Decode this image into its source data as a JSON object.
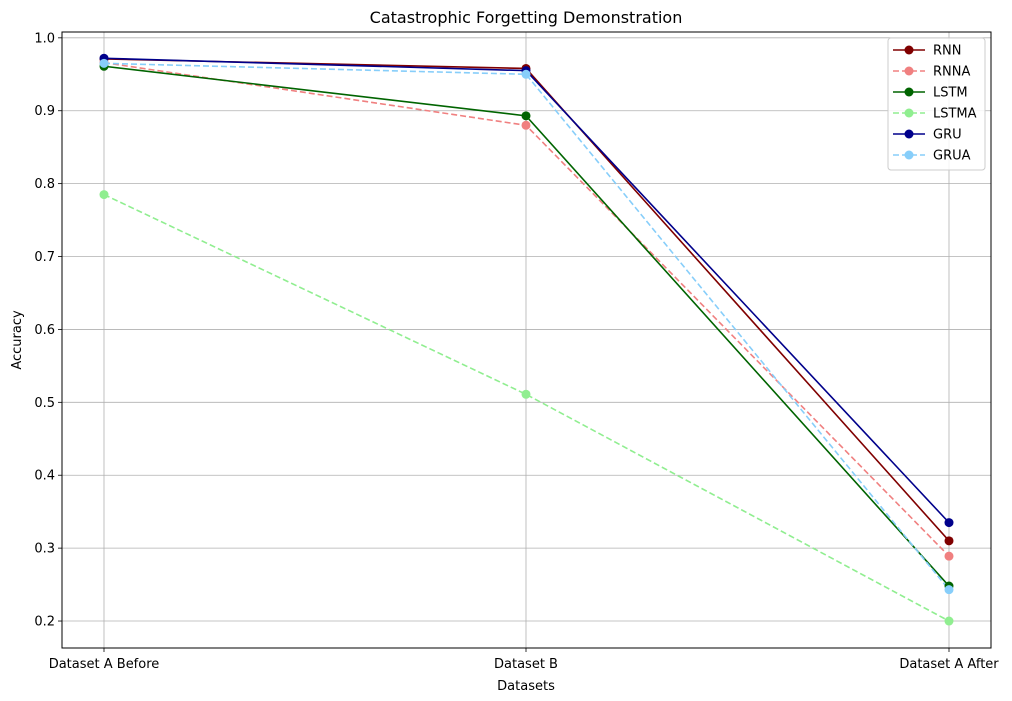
{
  "chart_data": {
    "type": "line",
    "title": "Catastrophic Forgetting Demonstration",
    "xlabel": "Datasets",
    "ylabel": "Accuracy",
    "categories": [
      "Dataset A Before",
      "Dataset B",
      "Dataset A After"
    ],
    "ylim": [
      0.163,
      1.008
    ],
    "yticks": [
      "0.2",
      "0.3",
      "0.4",
      "0.5",
      "0.6",
      "0.7",
      "0.8",
      "0.9",
      "1.0"
    ],
    "grid": true,
    "legend_position": "top-right",
    "series": [
      {
        "name": "RNN",
        "values": [
          0.971,
          0.958,
          0.31
        ],
        "color": "#800000",
        "dashed": false
      },
      {
        "name": "RNNA",
        "values": [
          0.966,
          0.88,
          0.289
        ],
        "color": "#f08080",
        "dashed": true
      },
      {
        "name": "LSTM",
        "values": [
          0.961,
          0.893,
          0.248
        ],
        "color": "#006400",
        "dashed": false
      },
      {
        "name": "LSTMA",
        "values": [
          0.785,
          0.511,
          0.2
        ],
        "color": "#90ee90",
        "dashed": true
      },
      {
        "name": "GRU",
        "values": [
          0.972,
          0.955,
          0.335
        ],
        "color": "#00008b",
        "dashed": false
      },
      {
        "name": "GRUA",
        "values": [
          0.965,
          0.95,
          0.243
        ],
        "color": "#87cefa",
        "dashed": true
      }
    ]
  }
}
